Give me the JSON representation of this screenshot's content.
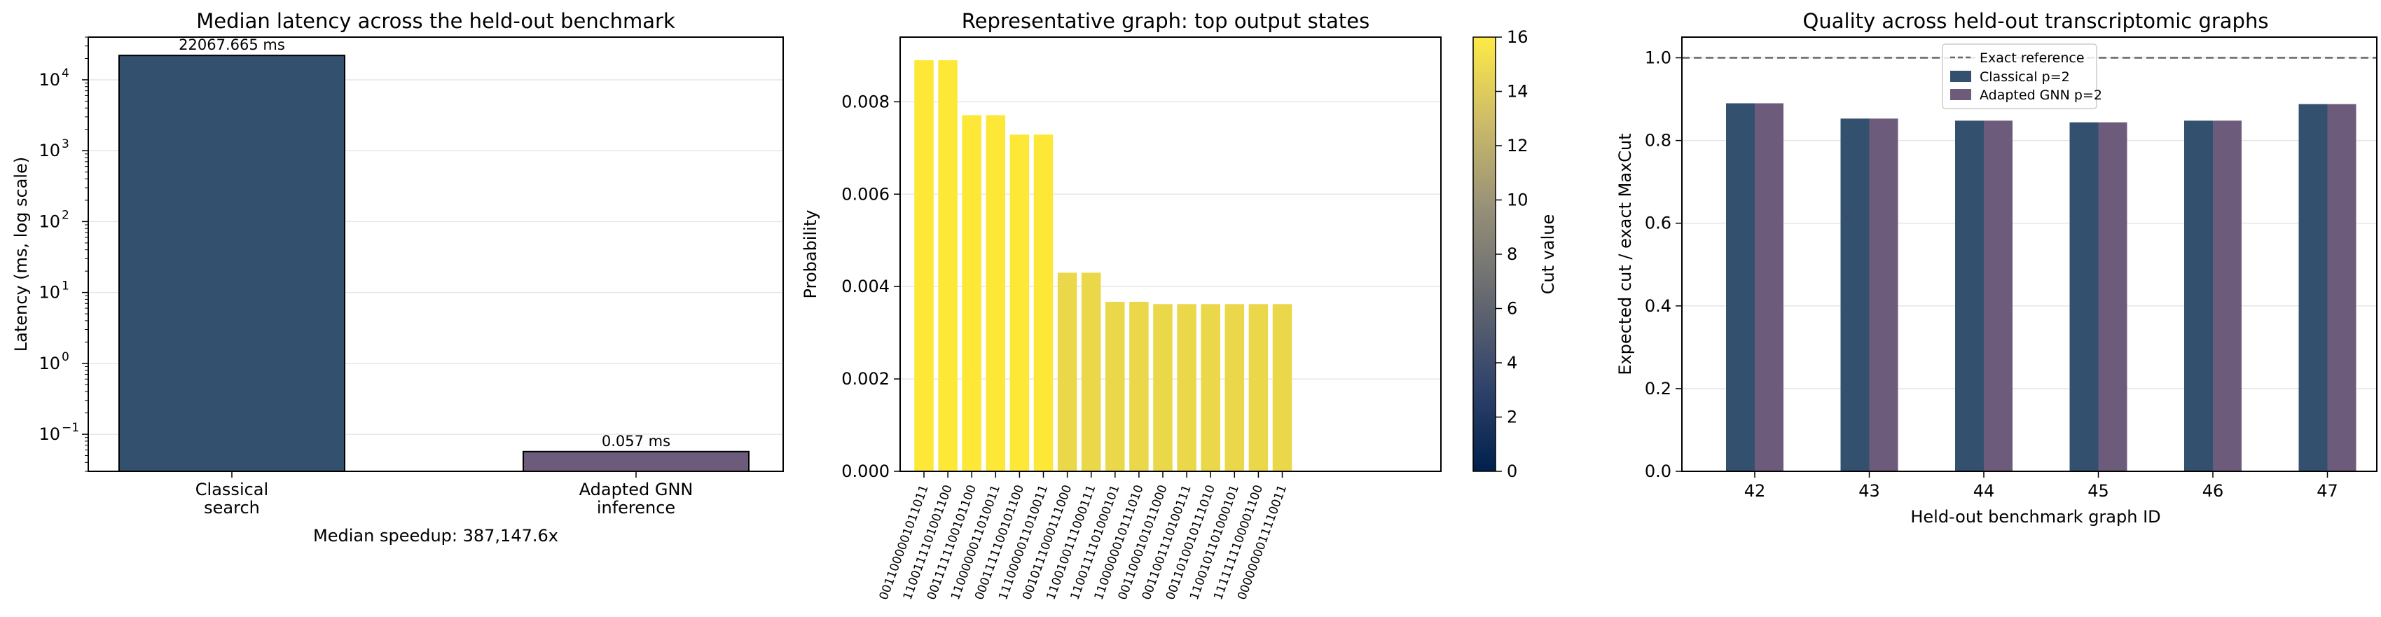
{
  "chart_data": [
    {
      "type": "bar",
      "title": "Median latency across the held-out benchmark",
      "xlabel": "",
      "ylabel": "Latency (ms, log scale)",
      "yscale": "log",
      "ylim": [
        0.03,
        40000
      ],
      "ytick_labels": [
        "10",
        "10",
        "10",
        "10",
        "10",
        "10"
      ],
      "ytick_exponents": [
        "−1",
        "0",
        "1",
        "2",
        "3",
        "4"
      ],
      "ytick_values": [
        0.1,
        1,
        10,
        100,
        1000,
        10000
      ],
      "categories": [
        [
          "Classical",
          "search"
        ],
        [
          "Adapted GNN",
          "inference"
        ]
      ],
      "values": [
        22067.665,
        0.057
      ],
      "data_labels": [
        "22067.665 ms",
        "0.057 ms"
      ],
      "colors": [
        "#34506f",
        "#6d5b7b"
      ],
      "annotation": "Median speedup: 387,147.6x",
      "grid": "y"
    },
    {
      "type": "bar",
      "title": "Representative graph: top output states",
      "xlabel": "",
      "ylabel": "Probability",
      "ylim": [
        0,
        0.0094
      ],
      "ytick_labels": [
        "0.000",
        "0.002",
        "0.004",
        "0.006",
        "0.008"
      ],
      "ytick_values": [
        0,
        0.002,
        0.004,
        0.006,
        0.008
      ],
      "categories": [
        "0011000001011011",
        "1100111101001100",
        "0011111100101100",
        "1100000011010011",
        "0001111100101100",
        "1110000011010011",
        "0010111000111000",
        "1100100111000111",
        "1100111101000101",
        "1100000010111010",
        "0011000101011000",
        "0011001110100111",
        "0011010010111010",
        "1100101101000101",
        "1111111100001100",
        "0000000011110011"
      ],
      "values": [
        0.0089,
        0.0089,
        0.00771,
        0.00771,
        0.00729,
        0.00729,
        0.0043,
        0.0043,
        0.00367,
        0.00367,
        0.00362,
        0.00362,
        0.00362,
        0.00362,
        0.00362,
        0.00362
      ],
      "cut_values": [
        16,
        16,
        16,
        16,
        16,
        16,
        15,
        15,
        15,
        15,
        15,
        15,
        15,
        15,
        15,
        15
      ],
      "bar_colors": [
        "#fde737",
        "#fde737",
        "#fde737",
        "#fde737",
        "#fde737",
        "#fde737",
        "#ead84a",
        "#ead84a",
        "#ead84a",
        "#ead84a",
        "#ead84a",
        "#ead84a",
        "#ead84a",
        "#ead84a",
        "#ead84a",
        "#ead84a"
      ],
      "colorbar": {
        "label": "Cut value",
        "range": [
          0,
          16
        ],
        "tick_labels": [
          "0",
          "2",
          "4",
          "6",
          "8",
          "10",
          "12",
          "14",
          "16"
        ],
        "tick_values": [
          0,
          2,
          4,
          6,
          8,
          10,
          12,
          14,
          16
        ],
        "colormap": "cividis",
        "stops": [
          "#00204d",
          "#31446b",
          "#666970",
          "#958f78",
          "#cbba69",
          "#ffea46"
        ]
      },
      "grid": "y"
    },
    {
      "type": "bar",
      "title": "Quality across held-out transcriptomic graphs",
      "xlabel": "Held-out benchmark graph ID",
      "ylabel": "Expected cut / exact MaxCut",
      "ylim": [
        0,
        1.05
      ],
      "ytick_labels": [
        "0.0",
        "0.2",
        "0.4",
        "0.6",
        "0.8",
        "1.0"
      ],
      "ytick_values": [
        0,
        0.2,
        0.4,
        0.6,
        0.8,
        1.0
      ],
      "categories": [
        "42",
        "43",
        "44",
        "45",
        "46",
        "47"
      ],
      "series": [
        {
          "name": "Classical p=2",
          "values": [
            0.89,
            0.853,
            0.848,
            0.844,
            0.848,
            0.888
          ],
          "color": "#34506f"
        },
        {
          "name": "Adapted GNN p=2",
          "values": [
            0.89,
            0.853,
            0.848,
            0.844,
            0.848,
            0.888
          ],
          "color": "#6d5b7b"
        }
      ],
      "reference": {
        "name": "Exact reference",
        "value": 1.0,
        "color": "#666666"
      },
      "legend": "top-center",
      "grid": "y"
    }
  ]
}
